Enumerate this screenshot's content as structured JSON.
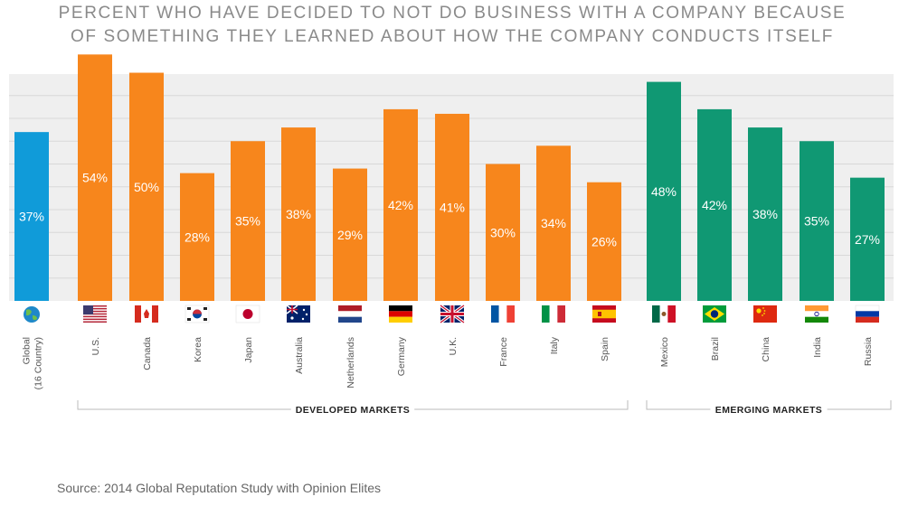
{
  "chart_data": {
    "type": "bar",
    "title_lines": [
      "PERCENT WHO HAVE DECIDED TO NOT DO BUSINESS WITH A COMPANY BECAUSE",
      "OF SOMETHING THEY LEARNED ABOUT HOW THE COMPANY CONDUCTS ITSELF"
    ],
    "categories": [
      "Global\n(16 Country)",
      "U.S.",
      "Canada",
      "Korea",
      "Japan",
      "Australia",
      "Netherlands",
      "Germany",
      "U.K.",
      "France",
      "Italy",
      "Spain",
      "Mexico",
      "Brazil",
      "China",
      "India",
      "Russia"
    ],
    "values": [
      37,
      54,
      50,
      28,
      35,
      38,
      29,
      42,
      41,
      30,
      34,
      26,
      48,
      42,
      38,
      35,
      27
    ],
    "value_labels": [
      "37%",
      "54%",
      "50%",
      "28%",
      "35%",
      "38%",
      "29%",
      "42%",
      "41%",
      "30%",
      "34%",
      "26%",
      "48%",
      "42%",
      "38%",
      "35%",
      "27%"
    ],
    "groups": [
      {
        "label": "DEVELOPED MARKETS",
        "from": 1,
        "to": 11,
        "color": "#f7861c"
      },
      {
        "label": "EMERGING MARKETS",
        "from": 12,
        "to": 16,
        "color": "#109873"
      }
    ],
    "global_color": "#109bd9",
    "ylim": [
      0,
      100
    ],
    "grid": true,
    "flag_icons": [
      "globe-icon",
      "us-flag-icon",
      "canada-flag-icon",
      "korea-flag-icon",
      "japan-flag-icon",
      "australia-flag-icon",
      "netherlands-flag-icon",
      "germany-flag-icon",
      "uk-flag-icon",
      "france-flag-icon",
      "italy-flag-icon",
      "spain-flag-icon",
      "mexico-flag-icon",
      "brazil-flag-icon",
      "china-flag-icon",
      "india-flag-icon",
      "russia-flag-icon"
    ],
    "source": "Source: 2014 Global Reputation Study with Opinion Elites"
  }
}
